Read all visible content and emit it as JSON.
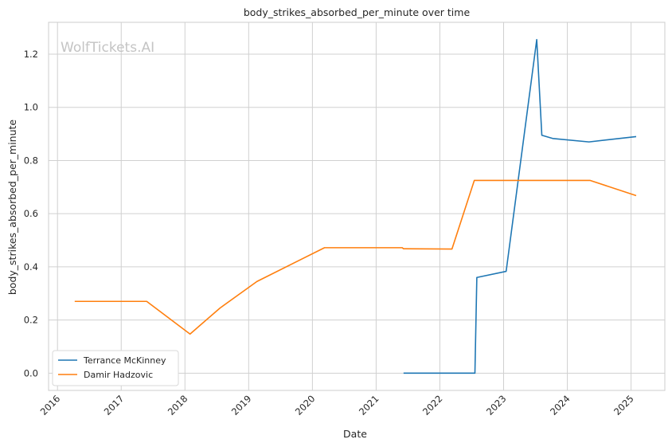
{
  "chart_data": {
    "type": "line",
    "title": "body_strikes_absorbed_per_minute over time",
    "xlabel": "Date",
    "ylabel": "body_strikes_absorbed_per_minute",
    "watermark": "WolfTickets.AI",
    "xlim": [
      2015.86,
      2025.53
    ],
    "ylim": [
      -0.065,
      1.32
    ],
    "x_ticks": [
      2016,
      2017,
      2018,
      2019,
      2020,
      2021,
      2022,
      2023,
      2024,
      2025
    ],
    "y_ticks": [
      0.0,
      0.2,
      0.4,
      0.6,
      0.8,
      1.0,
      1.2
    ],
    "y_tick_labels": [
      "0.0",
      "0.2",
      "0.4",
      "0.6",
      "0.8",
      "1.0",
      "1.2"
    ],
    "grid": true,
    "legend_position": "lower-left",
    "series": [
      {
        "name": "Terrance McKinney",
        "color": "#1f77b4",
        "points": [
          [
            2021.43,
            0.0
          ],
          [
            2022.55,
            0.0
          ],
          [
            2022.58,
            0.36
          ],
          [
            2023.04,
            0.383
          ],
          [
            2023.52,
            1.255
          ],
          [
            2023.6,
            0.895
          ],
          [
            2023.77,
            0.883
          ],
          [
            2024.34,
            0.87
          ],
          [
            2025.08,
            0.89
          ]
        ]
      },
      {
        "name": "Damir Hadzovic",
        "color": "#ff7f0e",
        "points": [
          [
            2016.27,
            0.27
          ],
          [
            2017.4,
            0.27
          ],
          [
            2018.08,
            0.147
          ],
          [
            2018.55,
            0.245
          ],
          [
            2019.13,
            0.345
          ],
          [
            2020.19,
            0.472
          ],
          [
            2021.41,
            0.472
          ],
          [
            2021.43,
            0.468
          ],
          [
            2022.19,
            0.467
          ],
          [
            2022.54,
            0.725
          ],
          [
            2024.36,
            0.725
          ],
          [
            2025.08,
            0.668
          ]
        ]
      }
    ]
  }
}
